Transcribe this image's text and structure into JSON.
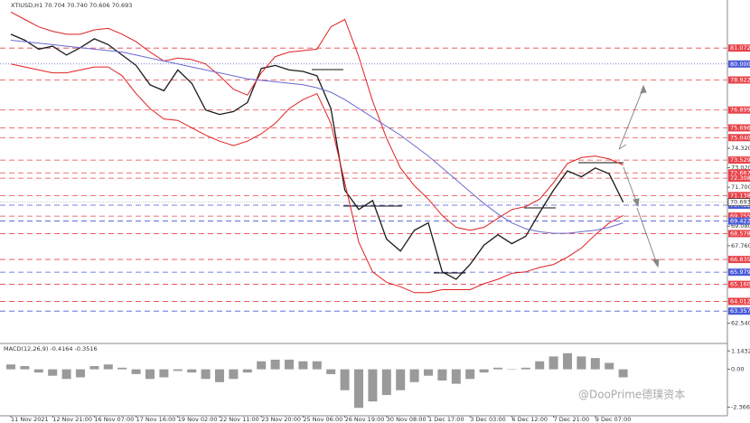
{
  "chart_data": {
    "type": "line",
    "title": "XTIUSD,H1 70.704 70.740 70.606 70.693",
    "categories": [
      "11 Nov 2021",
      null,
      null,
      "12 Nov 21:00",
      null,
      null,
      "16 Nov 07:00",
      null,
      null,
      "17 Nov 16:00",
      null,
      null,
      "19 Nov 02:00",
      null,
      null,
      "22 Nov 11:00",
      null,
      null,
      "23 Nov 20:00",
      null,
      null,
      "25 Nov 06:00",
      null,
      null,
      "26 Nov 19:00",
      null,
      null,
      "30 Nov 08:00",
      null,
      null,
      "1 Dec 17:00",
      null,
      null,
      "3 Dec 03:00",
      null,
      null,
      "6 Dec 12:00",
      null,
      null,
      "7 Dec 21:00",
      null,
      null,
      "9 Dec 07:00",
      null,
      null
    ],
    "series": [
      {
        "color": "#1a1a1a",
        "values": [
          82.0,
          81.6,
          81.0,
          81.2,
          80.6,
          81.1,
          81.7,
          81.3,
          80.6,
          79.9,
          78.6,
          78.2,
          79.6,
          78.7,
          76.9,
          76.6,
          76.8,
          77.4,
          79.7,
          79.9,
          79.6,
          79.5,
          79.2,
          77.0,
          71.5,
          70.2,
          70.8,
          68.2,
          67.4,
          68.8,
          69.3,
          66.0,
          65.5,
          66.5,
          67.8,
          68.5,
          67.9,
          68.4,
          70.0,
          71.5,
          72.8,
          72.4,
          73.0,
          72.6,
          70.7
        ]
      },
      {
        "color": "#e02020",
        "values": [
          83.5,
          83.0,
          82.5,
          82.2,
          82.0,
          82.0,
          82.3,
          82.4,
          82.0,
          81.5,
          80.8,
          80.2,
          80.4,
          80.3,
          80.0,
          79.2,
          78.3,
          77.9,
          79.4,
          80.5,
          80.8,
          80.9,
          81.0,
          82.5,
          83.0,
          80.5,
          77.5,
          75.0,
          73.0,
          71.8,
          70.9,
          69.8,
          69.0,
          68.8,
          69.0,
          69.6,
          70.2,
          70.4,
          70.9,
          72.0,
          73.3,
          73.7,
          73.8,
          73.6,
          73.2
        ]
      },
      {
        "color": "#e02020",
        "values": [
          80.0,
          79.8,
          79.6,
          79.4,
          79.4,
          79.6,
          79.8,
          79.8,
          79.2,
          78.0,
          77.0,
          76.3,
          76.2,
          75.7,
          75.2,
          74.8,
          74.5,
          74.8,
          75.3,
          76.0,
          77.0,
          77.6,
          78.0,
          76.0,
          72.0,
          68.0,
          66.0,
          65.3,
          65.0,
          64.6,
          64.6,
          64.8,
          64.8,
          64.8,
          65.2,
          65.5,
          65.9,
          66.0,
          66.3,
          66.5,
          67.0,
          67.6,
          68.5,
          69.3,
          69.8
        ]
      },
      {
        "color": "#6a6ad0",
        "values": [
          81.6,
          81.5,
          81.4,
          81.3,
          81.2,
          81.1,
          81.0,
          80.9,
          80.8,
          80.6,
          80.4,
          80.2,
          80.0,
          79.8,
          79.6,
          79.4,
          79.2,
          79.0,
          78.9,
          78.8,
          78.7,
          78.6,
          78.4,
          78.1,
          77.6,
          77.0,
          76.4,
          75.8,
          75.2,
          74.5,
          73.8,
          73.0,
          72.2,
          71.4,
          70.6,
          69.9,
          69.3,
          68.9,
          68.7,
          68.6,
          68.6,
          68.7,
          68.8,
          69.0,
          69.3
        ]
      }
    ],
    "ylim": [
      61.3,
      83.7
    ],
    "yticks": [
      {
        "value": 74.32,
        "label": "74.320"
      },
      {
        "value": 73.02,
        "label": "73.020"
      },
      {
        "value": 71.7,
        "label": "71.700"
      },
      {
        "value": 69.08,
        "label": "69.080"
      },
      {
        "value": 67.76,
        "label": "67.760"
      },
      {
        "value": 62.54,
        "label": "62.540"
      }
    ],
    "levels": [
      {
        "value": 81.072,
        "color": "#e8434a"
      },
      {
        "value": 80,
        "label": "80.000",
        "color": "#4a5ad8"
      },
      {
        "value": 78.922,
        "color": "#e8434a"
      },
      {
        "value": 76.899,
        "color": "#e8434a"
      },
      {
        "value": 75.696,
        "color": "#e8434a"
      },
      {
        "value": 75.04,
        "label": "75.040",
        "color": "#e8434a"
      },
      {
        "value": 73.529,
        "color": "#e8434a"
      },
      {
        "value": 72.667,
        "color": "#e8434a"
      },
      {
        "value": 72.308,
        "color": "#e8434a"
      },
      {
        "value": 71.138,
        "color": "#e8434a"
      },
      {
        "value": 70.492,
        "color": "#4a5ad8"
      },
      {
        "value": 69.755,
        "color": "#e8434a"
      },
      {
        "value": 69.422,
        "color": "#4a5ad8"
      },
      {
        "value": 68.578,
        "color": "#e8434a"
      },
      {
        "value": 66.835,
        "color": "#e8434a"
      },
      {
        "value": 65.979,
        "color": "#4a5ad8"
      },
      {
        "value": 65.16,
        "label": "65.160",
        "color": "#e8434a"
      },
      {
        "value": 64.012,
        "color": "#e8434a"
      },
      {
        "value": 63.357,
        "color": "#4a5ad8"
      }
    ],
    "last": {
      "value": 70.693,
      "color": "#1a1a1a"
    },
    "macd": {
      "label": "MACD(12,26,9) -0.4164 -0.3516",
      "color": "#9a9a9a",
      "values": [
        0.3,
        0.2,
        -0.2,
        -0.4,
        -0.6,
        -0.5,
        0.2,
        0.3,
        0.1,
        -0.3,
        -0.6,
        -0.5,
        -0.1,
        -0.2,
        -0.6,
        -0.8,
        -0.6,
        -0.2,
        0.5,
        0.6,
        0.6,
        0.5,
        0.5,
        -0.3,
        -1.3,
        -2.4,
        -2.0,
        -1.6,
        -1.3,
        -0.8,
        -0.4,
        -0.7,
        -0.9,
        -0.6,
        -0.2,
        0.1,
        0.0,
        0.1,
        0.5,
        0.8,
        1.0,
        0.8,
        0.7,
        0.4,
        -0.5
      ],
      "ylim": [
        -2.78,
        1.44
      ],
      "yticks": [
        1.1432,
        {
          "value": 0,
          "label": "0.00"
        },
        -2.3662
      ]
    },
    "watermark": "@DooPrime德璞资本"
  }
}
